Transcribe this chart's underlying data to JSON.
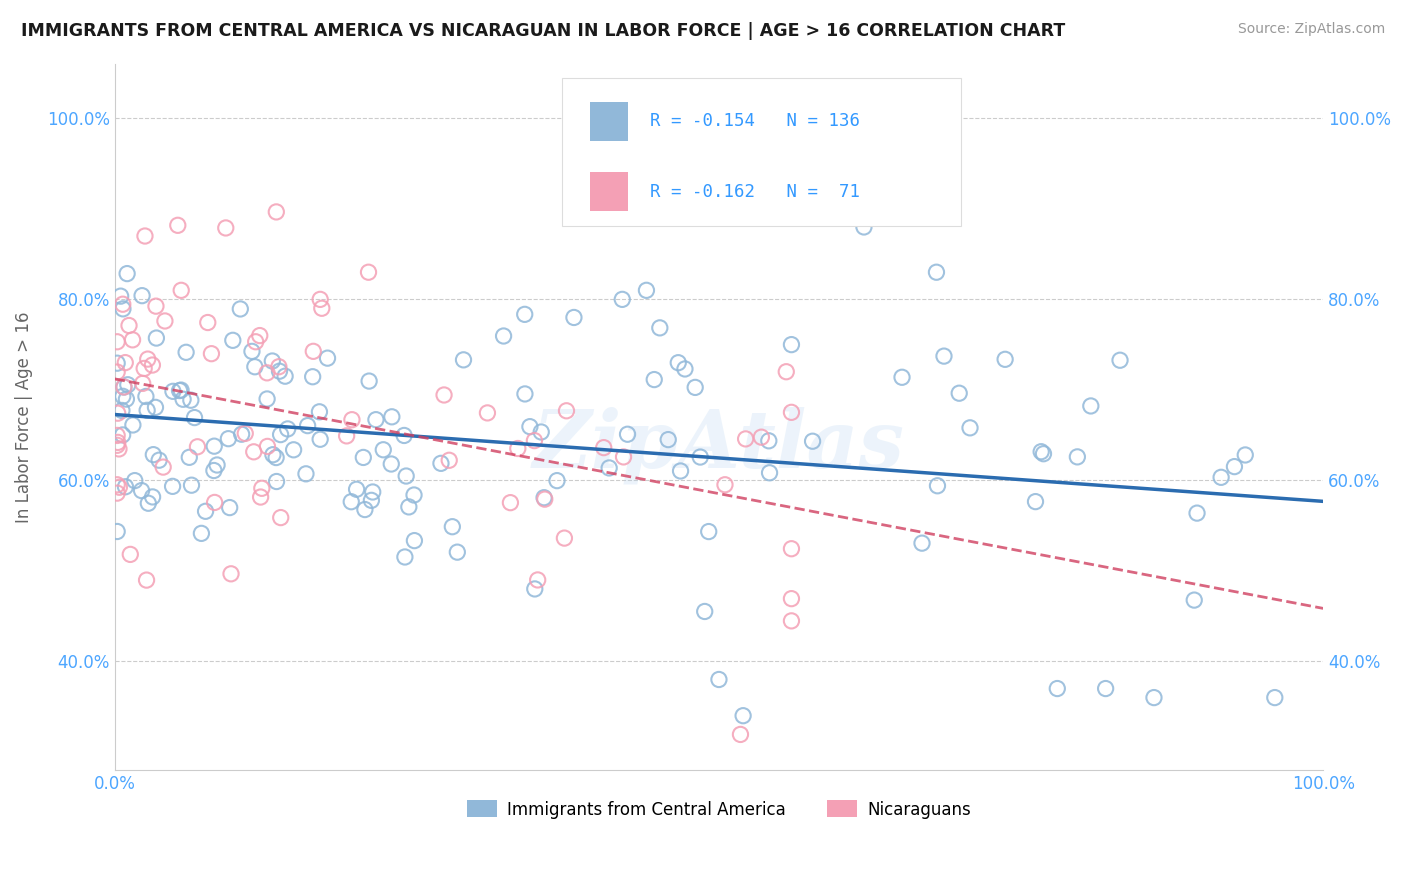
{
  "title": "IMMIGRANTS FROM CENTRAL AMERICA VS NICARAGUAN IN LABOR FORCE | AGE > 16 CORRELATION CHART",
  "source": "Source: ZipAtlas.com",
  "ylabel": "In Labor Force | Age > 16",
  "xlim": [
    0.0,
    1.0
  ],
  "ylim": [
    0.28,
    1.06
  ],
  "x_tick_labels": [
    "0.0%",
    "100.0%"
  ],
  "y_tick_labels": [
    "40.0%",
    "60.0%",
    "80.0%",
    "100.0%"
  ],
  "y_tick_values": [
    0.4,
    0.6,
    0.8,
    1.0
  ],
  "legend_r1": "-0.154",
  "legend_n1": "136",
  "legend_r2": "-0.162",
  "legend_n2": " 71",
  "blue_color": "#91b8d9",
  "pink_color": "#f4a0b5",
  "blue_line_color": "#2b6cb0",
  "pink_line_color": "#d04060",
  "watermark": "ZipAtlas",
  "background_color": "#ffffff",
  "grid_color": "#cccccc"
}
